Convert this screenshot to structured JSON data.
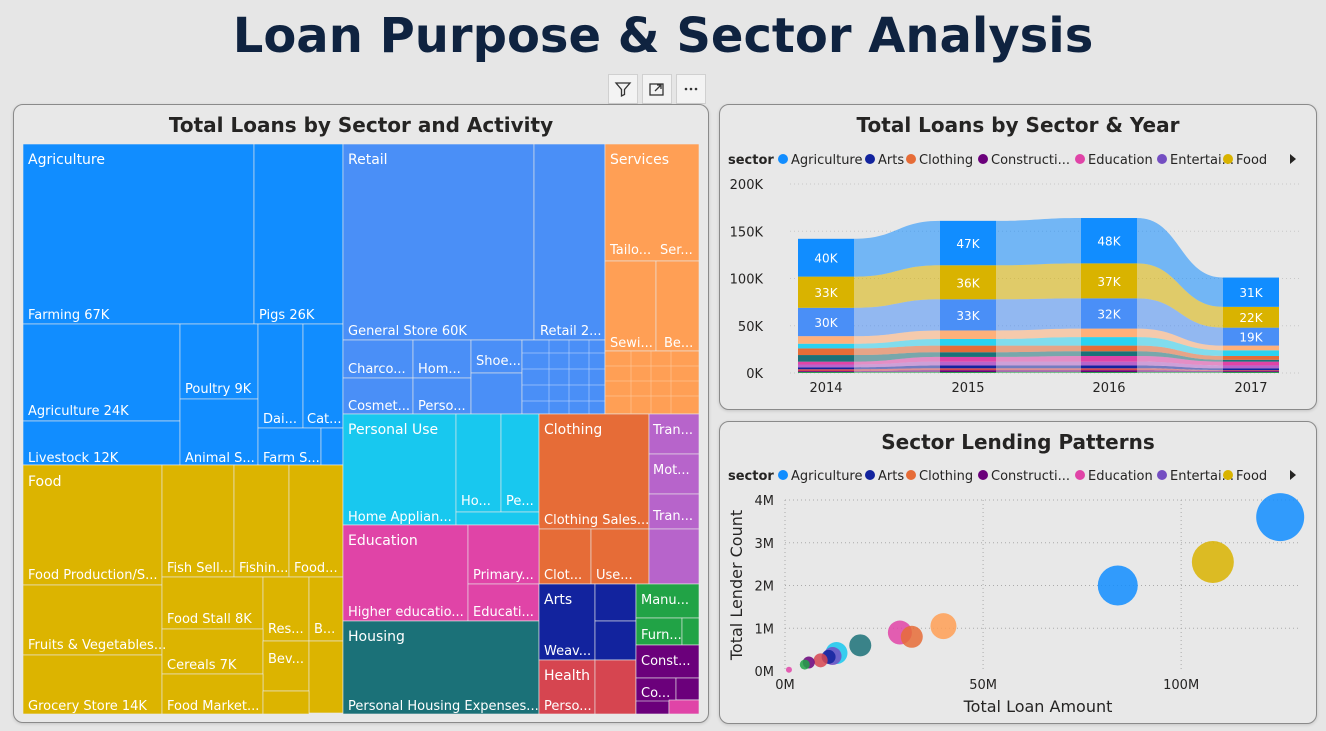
{
  "page_title": "Loan Purpose & Sector Analysis",
  "toolbar": {
    "icons": [
      "filter-icon",
      "focus-mode-icon",
      "more-options-icon"
    ]
  },
  "treemap": {
    "title": "Total Loans by Sector and Activity",
    "sectors": [
      {
        "name": "Agriculture",
        "color": "#118dff"
      },
      {
        "name": "Retail",
        "color": "#4a8ff7"
      },
      {
        "name": "Services",
        "color": "#ff9f55"
      },
      {
        "name": "Food",
        "color": "#dcb400"
      },
      {
        "name": "Personal Use",
        "color": "#18c8ef"
      },
      {
        "name": "Clothing",
        "color": "#e66c37"
      },
      {
        "name": "Transportation",
        "color": "#b764cb"
      },
      {
        "name": "Education",
        "color": "#e044a7"
      },
      {
        "name": "Housing",
        "color": "#1b7178"
      },
      {
        "name": "Arts",
        "color": "#12239e"
      },
      {
        "name": "Manufacturing",
        "color": "#21a346"
      },
      {
        "name": "Health",
        "color": "#d64550"
      },
      {
        "name": "Construction",
        "color": "#6b007b"
      }
    ],
    "labels": {
      "agriculture": "Agriculture",
      "farming": "Farming 67K",
      "pigs": "Pigs 26K",
      "agri24": "Agriculture 24K",
      "poultry": "Poultry 9K",
      "livestock": "Livestock 12K",
      "animal": "Animal S...",
      "dai": "Dai...",
      "cat": "Cat...",
      "farm": "Farm S...",
      "retail": "Retail",
      "general": "General Store 60K",
      "retail2": "Retail 2...",
      "charco": "Charco...",
      "hom": "Hom...",
      "shoe": "Shoe...",
      "cosmet": "Cosmet...",
      "perso": "Perso...",
      "services": "Services",
      "tailo": "Tailo...",
      "ser": "Ser...",
      "sewi": "Sewi...",
      "be": "Be...",
      "food": "Food",
      "foodprod": "Food Production/S...",
      "fishsell": "Fish Sell...",
      "fishin": "Fishin...",
      "foodd": "Food...",
      "fruits": "Fruits & Vegetables...",
      "foodstall": "Food Stall 8K",
      "res": "Res...",
      "b": "B...",
      "cereals": "Cereals 7K",
      "bev": "Bev...",
      "grocery": "Grocery Store 14K",
      "foodmarket": "Food Market...",
      "personal": "Personal Use",
      "homeappl": "Home Applian...",
      "ho": "Ho...",
      "pe": "Pe...",
      "clothing": "Clothing",
      "clothsales": "Clothing Sales...",
      "clot": "Clot...",
      "use": "Use...",
      "tran": "Tran...",
      "mot": "Mot...",
      "tran2": "Tran...",
      "education": "Education",
      "higher": "Higher educatio...",
      "primary": "Primary...",
      "educati": "Educati...",
      "housing": "Housing",
      "personalhousing": "Personal Housing Expenses...",
      "arts": "Arts",
      "weav": "Weav...",
      "manu": "Manu...",
      "furn": "Furn...",
      "health": "Health",
      "perso2": "Perso...",
      "const": "Const...",
      "co": "Co..."
    }
  },
  "legend": {
    "label": "sector",
    "items": [
      {
        "name": "Agriculture",
        "color": "#118dff"
      },
      {
        "name": "Arts",
        "color": "#12239e"
      },
      {
        "name": "Clothing",
        "color": "#e66c37"
      },
      {
        "name": "Constructi...",
        "color": "#6b007b"
      },
      {
        "name": "Education",
        "color": "#e044a7"
      },
      {
        "name": "Entertai...",
        "color": "#744ec2"
      },
      {
        "name": "Food",
        "color": "#d9b300"
      }
    ]
  },
  "chart_data": [
    {
      "type": "area",
      "title": "Total Loans by Sector & Year",
      "x": [
        "2014",
        "2015",
        "2016",
        "2017"
      ],
      "y_ticks": [
        "0K",
        "50K",
        "100K",
        "150K",
        "200K"
      ],
      "ylim": [
        0,
        200000
      ],
      "series": [
        {
          "name": "Agriculture",
          "color": "#118dff",
          "values": [
            40000,
            47000,
            48000,
            31000
          ],
          "labels": [
            "40K",
            "47K",
            "48K",
            "31K"
          ]
        },
        {
          "name": "Food",
          "color": "#d9b300",
          "values": [
            33000,
            36000,
            37000,
            22000
          ],
          "labels": [
            "33K",
            "36K",
            "37K",
            "22K"
          ]
        },
        {
          "name": "Retail",
          "color": "#4a8ff7",
          "values": [
            30000,
            33000,
            32000,
            19000
          ],
          "labels": [
            "30K",
            "33K",
            "32K",
            "19K"
          ]
        },
        {
          "name": "Services",
          "color": "#ffb07a",
          "values": [
            8000,
            9000,
            9000,
            5000
          ]
        },
        {
          "name": "Personal Use",
          "color": "#2bd2f0",
          "values": [
            5000,
            7000,
            9000,
            6000
          ]
        },
        {
          "name": "Clothing",
          "color": "#e66c37",
          "values": [
            7000,
            7000,
            6000,
            4000
          ]
        },
        {
          "name": "Housing",
          "color": "#1b7178",
          "values": [
            7000,
            5000,
            5000,
            2000
          ]
        },
        {
          "name": "Education",
          "color": "#e044a7",
          "values": [
            3000,
            5000,
            6000,
            4000
          ]
        },
        {
          "name": "Transportation",
          "color": "#b764cb",
          "values": [
            3000,
            4000,
            4000,
            3000
          ]
        },
        {
          "name": "Arts",
          "color": "#12239e",
          "values": [
            2000,
            3000,
            3000,
            2000
          ]
        },
        {
          "name": "Health",
          "color": "#d64550",
          "values": [
            2000,
            2000,
            2000,
            1000
          ]
        },
        {
          "name": "Construction",
          "color": "#6b007b",
          "values": [
            1000,
            2000,
            2000,
            1000
          ]
        },
        {
          "name": "Manufacturing",
          "color": "#21a346",
          "values": [
            1000,
            1000,
            1000,
            1000
          ]
        }
      ]
    },
    {
      "type": "scatter",
      "title": "Sector Lending Patterns",
      "xlabel": "Total Loan Amount",
      "ylabel": "Total Lender Count",
      "x_ticks": [
        "0M",
        "50M",
        "100M"
      ],
      "y_ticks": [
        "0M",
        "1M",
        "2M",
        "3M",
        "4M"
      ],
      "xlim": [
        0,
        130000000
      ],
      "ylim": [
        0,
        4000000
      ],
      "points": [
        {
          "name": "Agriculture",
          "x": 125000000,
          "y": 3600000,
          "size": 24,
          "color": "#118dff"
        },
        {
          "name": "Food",
          "x": 108000000,
          "y": 2550000,
          "size": 21,
          "color": "#d9b300"
        },
        {
          "name": "Retail",
          "x": 84000000,
          "y": 2000000,
          "size": 20,
          "color": "#118dff"
        },
        {
          "name": "Services",
          "x": 40000000,
          "y": 1050000,
          "size": 13,
          "color": "#ff9f55"
        },
        {
          "name": "Education",
          "x": 29000000,
          "y": 900000,
          "size": 12,
          "color": "#e044a7"
        },
        {
          "name": "Clothing",
          "x": 32000000,
          "y": 800000,
          "size": 11,
          "color": "#e66c37"
        },
        {
          "name": "Housing",
          "x": 19000000,
          "y": 600000,
          "size": 11,
          "color": "#1b7178"
        },
        {
          "name": "Personal Use",
          "x": 13000000,
          "y": 420000,
          "size": 11,
          "color": "#18c8ef"
        },
        {
          "name": "Transportation",
          "x": 12000000,
          "y": 350000,
          "size": 9,
          "color": "#744ec2"
        },
        {
          "name": "Arts",
          "x": 11000000,
          "y": 330000,
          "size": 7,
          "color": "#12239e"
        },
        {
          "name": "Health",
          "x": 9000000,
          "y": 250000,
          "size": 7,
          "color": "#d64550"
        },
        {
          "name": "Construction",
          "x": 6000000,
          "y": 200000,
          "size": 6,
          "color": "#6b007b"
        },
        {
          "name": "Manufacturing",
          "x": 5000000,
          "y": 150000,
          "size": 5,
          "color": "#21a346"
        },
        {
          "name": "Entertainment",
          "x": 1000000,
          "y": 30000,
          "size": 3,
          "color": "#e044a7"
        }
      ]
    }
  ]
}
